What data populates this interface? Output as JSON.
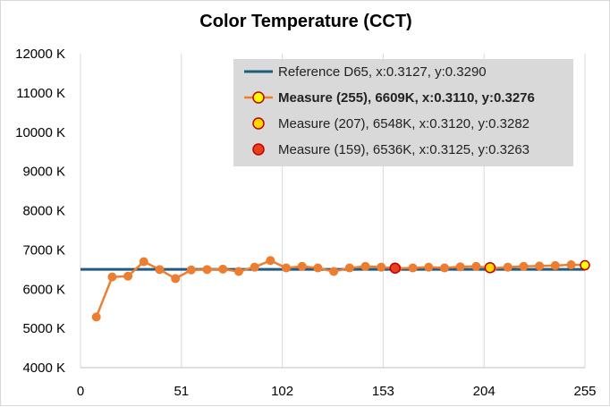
{
  "chart_data": {
    "type": "line",
    "title": "Color Temperature (CCT)",
    "xlabel": "",
    "ylabel": "",
    "xlim": [
      0,
      255
    ],
    "ylim": [
      4000,
      12000
    ],
    "x_ticks": [
      0,
      51,
      102,
      153,
      204,
      255
    ],
    "y_ticks": [
      4000,
      5000,
      6000,
      7000,
      8000,
      9000,
      10000,
      11000,
      12000
    ],
    "y_tick_suffix": " K",
    "grid": "vertical",
    "legend_position": "top-right",
    "series": [
      {
        "name": "Reference D65, x:0.3127, y:0.3290",
        "kind": "reference-line",
        "color": "#1f5a82",
        "x": [
          0,
          255
        ],
        "y": [
          6504,
          6504
        ]
      },
      {
        "name": "Measure (255), 6609K, x:0.3110, y:0.3276",
        "kind": "line",
        "color": "#ed7d31",
        "bold": true,
        "x": [
          8,
          16,
          24,
          32,
          40,
          48,
          56,
          64,
          72,
          80,
          88,
          96,
          104,
          112,
          120,
          128,
          136,
          144,
          152,
          160,
          168,
          176,
          184,
          192,
          200,
          208,
          216,
          224,
          232,
          240,
          248,
          255
        ],
        "y": [
          5290,
          6310,
          6330,
          6700,
          6500,
          6270,
          6490,
          6500,
          6510,
          6450,
          6560,
          6730,
          6540,
          6580,
          6540,
          6450,
          6540,
          6580,
          6560,
          6530,
          6540,
          6560,
          6540,
          6570,
          6580,
          6530,
          6560,
          6580,
          6590,
          6600,
          6620,
          6609
        ]
      },
      {
        "name": "Measure (207), 6548K, x:0.3120, y:0.3282",
        "kind": "marker",
        "color": "#c00000",
        "fill": "#ffd700",
        "x": [
          207
        ],
        "y": [
          6548
        ]
      },
      {
        "name": "Measure (159), 6536K, x:0.3125, y:0.3263",
        "kind": "marker",
        "color": "#c00000",
        "fill": "#e8401c",
        "x": [
          159
        ],
        "y": [
          6536
        ]
      }
    ]
  }
}
